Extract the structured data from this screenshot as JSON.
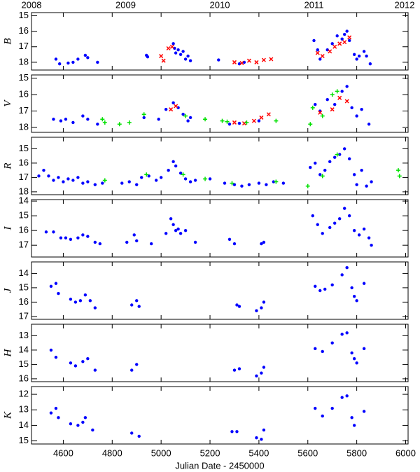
{
  "chart_data": [
    {
      "type": "scatter",
      "ylabel": "B",
      "xlim": [
        4470,
        6010
      ],
      "ylim": [
        18.5,
        14.8
      ],
      "yticks": [
        15,
        16,
        17,
        18
      ],
      "x2lim": [
        2008,
        2012
      ],
      "x2ticks": [
        2008,
        2009,
        2010,
        2011,
        2012
      ],
      "series": [
        {
          "color": "#0000ff",
          "marker": "circle",
          "x": [
            4570,
            4585,
            4620,
            4640,
            4660,
            4690,
            4700,
            4740,
            4940,
            4945,
            5050,
            5055,
            5060,
            5070,
            5080,
            5090,
            5100,
            5110,
            5120,
            5235,
            5320,
            5340,
            5625,
            5640,
            5650,
            5680,
            5700,
            5720,
            5740,
            5750,
            5760,
            5770,
            5790,
            5800,
            5810,
            5830,
            5840,
            5855
          ],
          "y": [
            17.8,
            18.1,
            18.05,
            18.0,
            17.8,
            17.55,
            17.7,
            18.0,
            17.55,
            17.65,
            16.8,
            17.1,
            17.4,
            17.2,
            17.5,
            17.3,
            17.8,
            17.6,
            17.9,
            17.85,
            18.1,
            18.0,
            16.6,
            17.2,
            17.8,
            17.2,
            16.8,
            16.3,
            16.5,
            16.2,
            16.0,
            16.6,
            17.5,
            17.8,
            17.6,
            17.3,
            17.6,
            18.1
          ]
        },
        {
          "color": "#ff0000",
          "marker": "x",
          "x": [
            5000,
            5010,
            5030,
            5045,
            5300,
            5330,
            5360,
            5390,
            5420,
            5450,
            5640,
            5660,
            5690,
            5710,
            5730,
            5750,
            5770
          ],
          "y": [
            17.6,
            17.9,
            17.1,
            17.0,
            18.0,
            18.05,
            17.9,
            18.0,
            17.85,
            17.8,
            17.4,
            17.6,
            17.3,
            17.0,
            16.8,
            16.7,
            16.4
          ]
        }
      ]
    },
    {
      "type": "scatter",
      "ylabel": "V",
      "xlim": [
        4470,
        6010
      ],
      "ylim": [
        18.3,
        14.8
      ],
      "yticks": [
        15,
        16,
        17,
        18
      ],
      "series": [
        {
          "color": "#0000ff",
          "marker": "circle",
          "x": [
            4560,
            4590,
            4610,
            4640,
            4680,
            4700,
            4740,
            4930,
            4990,
            5020,
            5050,
            5070,
            5090,
            5110,
            5120,
            5280,
            5320,
            5400,
            5630,
            5650,
            5680,
            5710,
            5740,
            5760,
            5780,
            5800,
            5820,
            5850
          ],
          "y": [
            17.5,
            17.6,
            17.5,
            17.7,
            17.3,
            17.5,
            17.8,
            17.4,
            17.5,
            16.9,
            16.5,
            16.8,
            17.2,
            17.6,
            17.4,
            17.8,
            17.75,
            17.6,
            16.6,
            17.0,
            16.3,
            16.6,
            15.8,
            15.5,
            16.8,
            17.3,
            16.9,
            17.8
          ]
        },
        {
          "color": "#ff0000",
          "marker": "x",
          "x": [
            5040,
            5060,
            5300,
            5340,
            5380,
            5410,
            5440,
            5650,
            5700,
            5730,
            5760
          ],
          "y": [
            16.9,
            16.7,
            17.7,
            17.75,
            17.6,
            17.4,
            17.2,
            17.1,
            16.9,
            16.2,
            16.4
          ]
        },
        {
          "color": "#00e000",
          "marker": "plus",
          "x": [
            4760,
            4770,
            4830,
            4870,
            4930,
            5100,
            5180,
            5250,
            5270,
            5350,
            5470,
            5610,
            5620,
            5660,
            5700,
            5720
          ],
          "y": [
            17.5,
            17.7,
            17.8,
            17.7,
            17.2,
            17.3,
            17.5,
            17.6,
            17.65,
            17.7,
            17.6,
            17.8,
            16.8,
            17.3,
            16.0,
            15.8
          ]
        }
      ]
    },
    {
      "type": "scatter",
      "ylabel": "R",
      "xlim": [
        4470,
        6010
      ],
      "ylim": [
        18.2,
        14.2
      ],
      "yticks": [
        15,
        16,
        17,
        18
      ],
      "series": [
        {
          "color": "#0000ff",
          "marker": "circle",
          "x": [
            4500,
            4520,
            4540,
            4560,
            4580,
            4600,
            4620,
            4640,
            4660,
            4680,
            4700,
            4730,
            4760,
            4840,
            4870,
            4900,
            4920,
            4950,
            4980,
            5000,
            5030,
            5050,
            5060,
            5080,
            5100,
            5120,
            5140,
            5200,
            5260,
            5300,
            5330,
            5360,
            5400,
            5430,
            5460,
            5500,
            5610,
            5630,
            5650,
            5670,
            5690,
            5710,
            5730,
            5750,
            5770,
            5790,
            5800,
            5820,
            5840,
            5860
          ],
          "y": [
            16.9,
            16.5,
            16.9,
            17.2,
            17.0,
            17.3,
            17.1,
            17.2,
            17.0,
            17.4,
            17.3,
            17.5,
            17.4,
            17.4,
            17.3,
            17.5,
            17.0,
            16.9,
            17.2,
            17.0,
            16.5,
            15.9,
            16.2,
            16.7,
            17.1,
            17.3,
            17.2,
            17.1,
            17.4,
            17.5,
            17.6,
            17.5,
            17.4,
            17.5,
            17.3,
            17.4,
            16.3,
            16.0,
            16.8,
            16.5,
            15.9,
            15.6,
            15.4,
            15.0,
            15.7,
            16.8,
            17.5,
            16.5,
            17.6,
            17.3
          ]
        },
        {
          "color": "#00e000",
          "marker": "plus",
          "x": [
            4770,
            4940,
            5090,
            5180,
            5290,
            5470,
            5600,
            5660,
            5720,
            5970,
            5975
          ],
          "y": [
            17.2,
            16.8,
            16.8,
            17.1,
            17.4,
            17.3,
            17.6,
            16.9,
            15.4,
            16.5,
            16.9
          ]
        }
      ]
    },
    {
      "type": "scatter",
      "ylabel": "I",
      "xlim": [
        4470,
        6010
      ],
      "ylim": [
        17.8,
        13.9
      ],
      "yticks": [
        14,
        15,
        16,
        17
      ],
      "series": [
        {
          "color": "#0000ff",
          "marker": "circle",
          "x": [
            4530,
            4560,
            4590,
            4610,
            4630,
            4660,
            4680,
            4700,
            4730,
            4750,
            4860,
            4890,
            4900,
            4960,
            5020,
            5040,
            5050,
            5060,
            5070,
            5080,
            5100,
            5140,
            5280,
            5300,
            5410,
            5420,
            5620,
            5640,
            5660,
            5690,
            5710,
            5730,
            5750,
            5770,
            5790,
            5810,
            5830,
            5850,
            5860
          ],
          "y": [
            16.1,
            16.1,
            16.5,
            16.5,
            16.6,
            16.5,
            16.3,
            16.4,
            16.8,
            16.9,
            16.8,
            16.3,
            16.7,
            16.9,
            16.2,
            15.2,
            15.6,
            16.0,
            15.9,
            16.2,
            16.0,
            16.8,
            16.6,
            16.9,
            16.9,
            16.8,
            15.0,
            15.6,
            16.2,
            15.8,
            15.5,
            15.2,
            14.5,
            15.0,
            16.0,
            16.3,
            15.9,
            16.5,
            17.0
          ]
        }
      ]
    },
    {
      "type": "scatter",
      "ylabel": "J",
      "xlim": [
        4470,
        6010
      ],
      "ylim": [
        17.2,
        13.2
      ],
      "yticks": [
        14,
        15,
        16,
        17
      ],
      "series": [
        {
          "color": "#0000ff",
          "marker": "circle",
          "x": [
            4550,
            4570,
            4580,
            4630,
            4650,
            4670,
            4690,
            4710,
            4730,
            4880,
            4900,
            4910,
            5310,
            5320,
            5390,
            5410,
            5420,
            5630,
            5650,
            5670,
            5700,
            5740,
            5760,
            5780,
            5790,
            5800,
            5830
          ],
          "y": [
            14.9,
            14.7,
            15.4,
            15.8,
            16.0,
            15.9,
            15.5,
            15.9,
            16.4,
            16.2,
            15.9,
            16.3,
            16.2,
            16.3,
            16.6,
            16.4,
            16.0,
            14.9,
            15.2,
            15.1,
            14.8,
            14.1,
            13.6,
            15.0,
            15.6,
            15.9,
            14.7
          ]
        }
      ]
    },
    {
      "type": "scatter",
      "ylabel": "H",
      "xlim": [
        4470,
        6010
      ],
      "ylim": [
        16.2,
        12.2
      ],
      "yticks": [
        13,
        14,
        15,
        16
      ],
      "series": [
        {
          "color": "#0000ff",
          "marker": "circle",
          "x": [
            4550,
            4570,
            4630,
            4650,
            4680,
            4700,
            4730,
            4880,
            4900,
            5300,
            5320,
            5390,
            5410,
            5420,
            5630,
            5660,
            5700,
            5740,
            5760,
            5780,
            5790,
            5800,
            5830
          ],
          "y": [
            14.0,
            14.5,
            14.9,
            15.1,
            14.8,
            14.6,
            15.4,
            15.4,
            15.0,
            15.4,
            15.3,
            15.8,
            15.6,
            15.2,
            13.9,
            14.1,
            13.5,
            12.9,
            12.8,
            14.2,
            14.6,
            14.9,
            13.9
          ]
        }
      ]
    },
    {
      "type": "scatter",
      "ylabel": "K",
      "xlim": [
        4470,
        6010
      ],
      "ylim": [
        15.2,
        11.5
      ],
      "yticks": [
        12,
        13,
        14,
        15
      ],
      "xlabel": "Julian Date - 2450000",
      "xticks": [
        4600,
        4800,
        5000,
        5200,
        5400,
        5600,
        5800,
        6000
      ],
      "series": [
        {
          "color": "#0000ff",
          "marker": "circle",
          "x": [
            4550,
            4570,
            4580,
            4630,
            4660,
            4680,
            4690,
            4720,
            4880,
            4910,
            5290,
            5310,
            5390,
            5410,
            5420,
            5630,
            5660,
            5700,
            5740,
            5760,
            5780,
            5790,
            5830
          ],
          "y": [
            13.2,
            12.9,
            13.5,
            13.9,
            14.0,
            13.8,
            13.5,
            14.3,
            14.5,
            14.7,
            14.4,
            14.4,
            14.8,
            14.9,
            14.3,
            12.9,
            13.4,
            12.9,
            12.2,
            12.1,
            13.5,
            14.0,
            13.1
          ]
        }
      ]
    }
  ]
}
